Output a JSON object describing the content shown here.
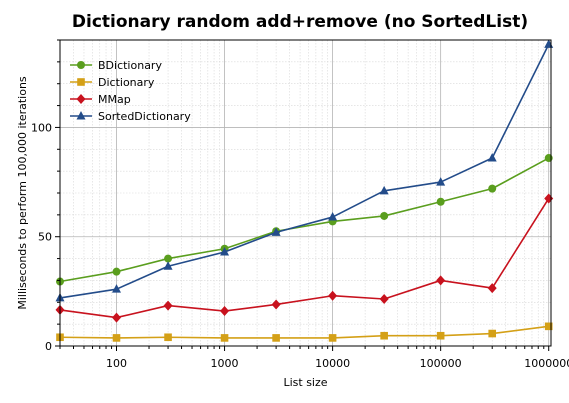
{
  "chart_data": {
    "type": "line",
    "title": "Dictionary random add+remove (no SortedList)",
    "xlabel": "List size",
    "ylabel": "Milliseconds to perform 100,000 iterations",
    "xscale": "log",
    "xlim": [
      30,
      1050000
    ],
    "ylim": [
      0,
      140
    ],
    "x": [
      30,
      100,
      300,
      1000,
      3000,
      10000,
      30000,
      100000,
      300000,
      1000000
    ],
    "x_ticks": [
      100,
      1000,
      10000,
      100000,
      1000000
    ],
    "x_tick_labels": [
      "100",
      "1000",
      "10000",
      "100000",
      "1000000"
    ],
    "y_ticks": [
      0,
      50,
      100
    ],
    "y_tick_labels": [
      "0",
      "50",
      "100"
    ],
    "grid": true,
    "legend_position": "top-left",
    "series": [
      {
        "name": "BDictionary",
        "color": "#5a9e1e",
        "marker": "circle",
        "values": [
          29.5,
          34,
          40,
          44.5,
          52.5,
          57,
          59.5,
          66,
          72,
          86
        ]
      },
      {
        "name": "Dictionary",
        "color": "#d4a017",
        "marker": "square",
        "values": [
          4,
          3.7,
          4,
          3.7,
          3.7,
          3.7,
          4.7,
          4.7,
          5.7,
          9
        ]
      },
      {
        "name": "MMap",
        "color": "#c8121e",
        "marker": "diamond",
        "values": [
          16.5,
          13,
          18.5,
          16,
          19,
          23,
          21.5,
          30,
          26.5,
          67.5
        ]
      },
      {
        "name": "SortedDictionary",
        "color": "#234c8a",
        "marker": "triangle",
        "values": [
          22,
          26,
          36.5,
          43,
          52,
          59,
          71,
          75,
          86,
          138
        ]
      }
    ]
  }
}
